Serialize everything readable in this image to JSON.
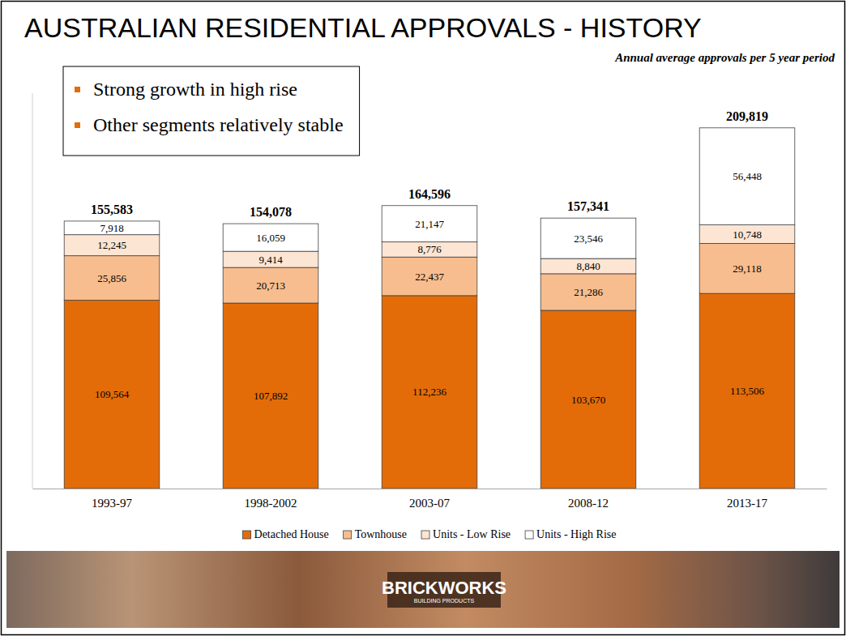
{
  "chart_data": {
    "type": "bar",
    "title": "AUSTRALIAN RESIDENTIAL APPROVALS - HISTORY",
    "subtitle": "Annual average approvals per 5 year period",
    "annotations": [
      "Strong growth in high rise",
      "Other segments relatively stable"
    ],
    "categories": [
      "1993-97",
      "1998-2002",
      "2003-07",
      "2008-12",
      "2013-17"
    ],
    "series": [
      {
        "name": "Detached House",
        "color": "#e36c09",
        "values": [
          109564,
          107892,
          112236,
          103670,
          113506
        ],
        "value_labels": [
          "109,564",
          "107,892",
          "112,236",
          "103,670",
          "113,506"
        ]
      },
      {
        "name": "Townhouse",
        "color": "#f8bd8e",
        "values": [
          25856,
          20713,
          22437,
          21286,
          29118
        ],
        "value_labels": [
          "25,856",
          "20,713",
          "22,437",
          "21,286",
          "29,118"
        ]
      },
      {
        "name": "Units - Low Rise",
        "color": "#fde5d4",
        "values": [
          12245,
          9414,
          8776,
          8840,
          10748
        ],
        "value_labels": [
          "12,245",
          "9,414",
          "8,776",
          "8,840",
          "10,748"
        ]
      },
      {
        "name": "Units - High Rise",
        "color": "#ffffff",
        "values": [
          7918,
          16059,
          21147,
          23546,
          56448
        ],
        "value_labels": [
          "7,918",
          "16,059",
          "21,147",
          "23,546",
          "56,448"
        ]
      }
    ],
    "totals": [
      155583,
      154078,
      164596,
      157341,
      209819
    ],
    "total_labels": [
      "155,583",
      "154,078",
      "164,596",
      "157,341",
      "209,819"
    ],
    "stacked": true,
    "data_labels": true,
    "legend": "bottom",
    "tick_labels": "x",
    "grid": false,
    "ylim": [
      0,
      230000
    ]
  },
  "footer": {
    "logo": "BRICKWORKS",
    "tagline": "BUILDING PRODUCTS"
  }
}
